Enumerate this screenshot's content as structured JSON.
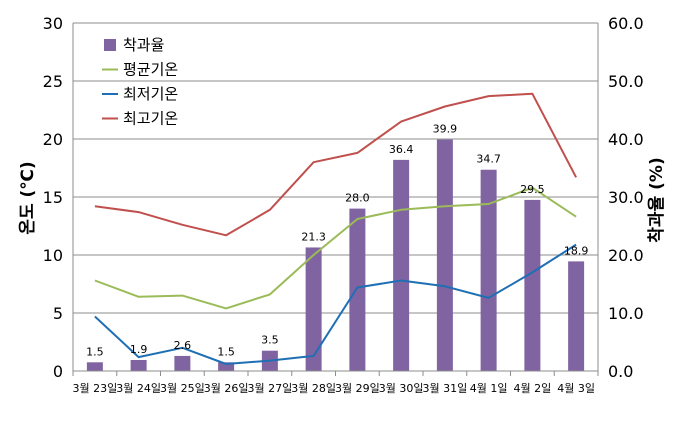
{
  "chart_data": {
    "type": "bar+line",
    "categories": [
      "3월 23일",
      "3월 24일",
      "3월 25일",
      "3월 26일",
      "3월 27일",
      "3월 28일",
      "3월 29일",
      "3월 30일",
      "3월 31일",
      "4월 1일",
      "4월 2일",
      "4월 3일"
    ],
    "y_left": {
      "label": "온도 (℃)",
      "min": 0,
      "max": 30,
      "ticks": [
        0,
        5,
        10,
        15,
        20,
        25,
        30
      ]
    },
    "y_right": {
      "label": "착과율 (%)",
      "min": 0,
      "max": 60,
      "ticks": [
        "0.0",
        "10.0",
        "20.0",
        "30.0",
        "40.0",
        "50.0",
        "60.0"
      ]
    },
    "bar_series": {
      "name": "착과율",
      "axis": "right",
      "color": "#8064a2",
      "values": [
        1.5,
        1.9,
        2.6,
        1.5,
        3.5,
        21.3,
        28.0,
        36.4,
        39.9,
        34.7,
        29.5,
        18.9
      ],
      "labels": [
        "1.5",
        "1.9",
        "2.6",
        "1.5",
        "3.5",
        "21.3",
        "28.0",
        "36.4",
        "39.9",
        "34.7",
        "29.5",
        "18.9"
      ]
    },
    "line_series": [
      {
        "name": "평균기온",
        "axis": "left",
        "color": "#9bbb59",
        "values": [
          7.8,
          6.4,
          6.5,
          5.4,
          6.6,
          10.0,
          13.1,
          13.9,
          14.2,
          14.4,
          15.8,
          13.3
        ]
      },
      {
        "name": "최저기온",
        "axis": "left",
        "color": "#1f6fb4",
        "values": [
          4.7,
          1.2,
          2.0,
          0.6,
          0.9,
          1.3,
          7.2,
          7.8,
          7.3,
          6.3,
          8.5,
          10.9
        ]
      },
      {
        "name": "최고기온",
        "axis": "left",
        "color": "#c0504d",
        "values": [
          14.2,
          13.7,
          12.6,
          11.7,
          13.9,
          18.0,
          18.8,
          21.5,
          22.8,
          23.7,
          23.9,
          16.7
        ]
      }
    ],
    "legend": {
      "placement": "top-left"
    },
    "grid": true
  }
}
